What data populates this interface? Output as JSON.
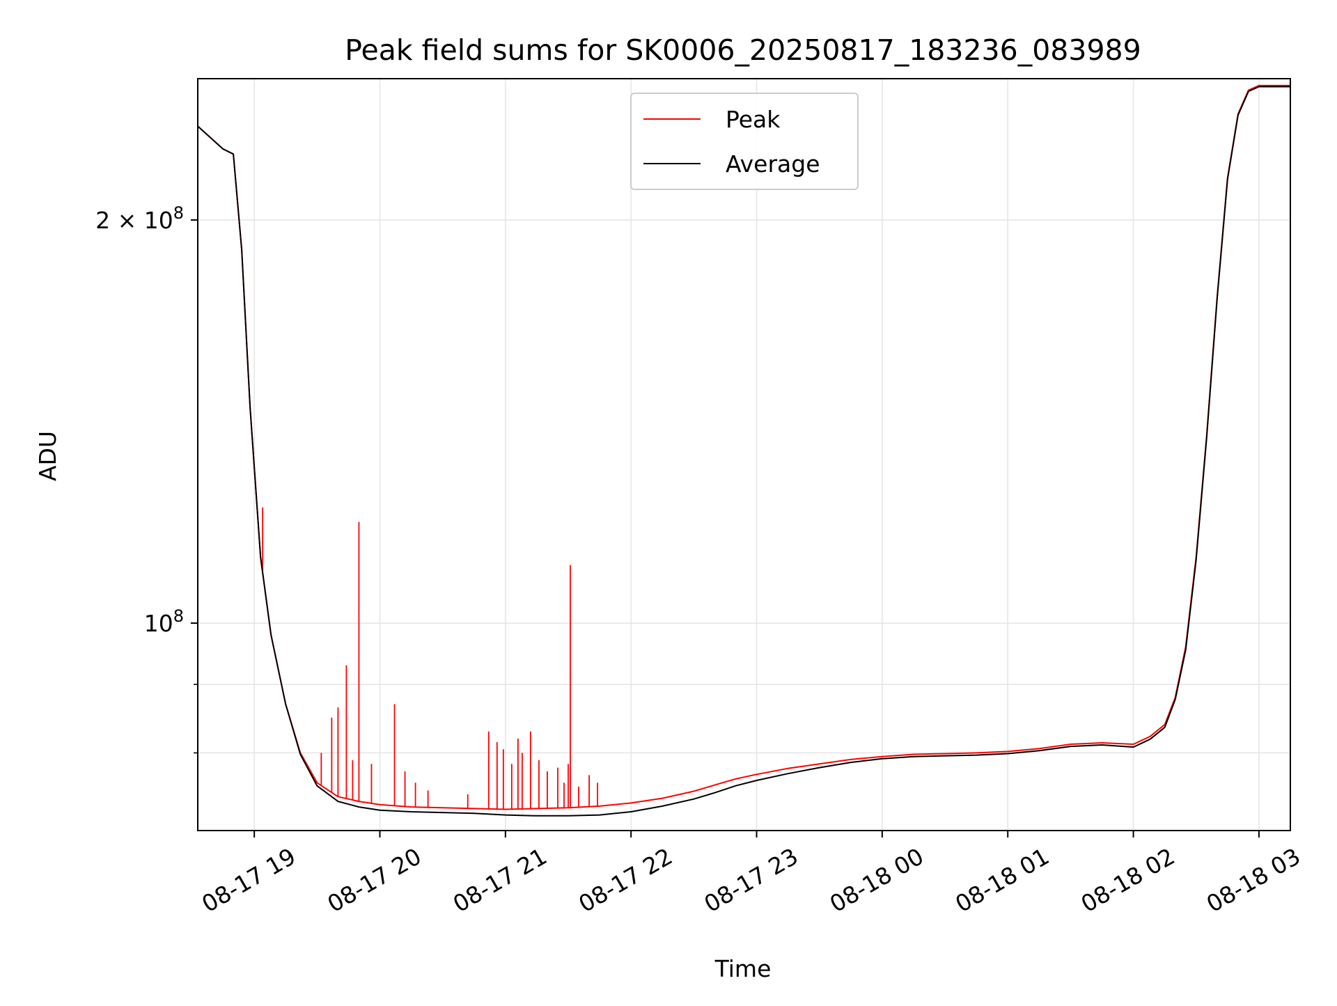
{
  "chart_data": {
    "type": "line",
    "title": "Peak field sums for SK0006_20250817_183236_083989",
    "xlabel": "Time",
    "ylabel": "ADU",
    "x_axis": {
      "type": "time",
      "range": [
        "2025-08-17 18:33",
        "2025-08-18 03:15"
      ],
      "ticks": [
        {
          "value": "2025-08-17 19:00",
          "label": "08-17 19"
        },
        {
          "value": "2025-08-17 20:00",
          "label": "08-17 20"
        },
        {
          "value": "2025-08-17 21:00",
          "label": "08-17 21"
        },
        {
          "value": "2025-08-17 22:00",
          "label": "08-17 22"
        },
        {
          "value": "2025-08-17 23:00",
          "label": "08-17 23"
        },
        {
          "value": "2025-08-18 00:00",
          "label": "08-18 00"
        },
        {
          "value": "2025-08-18 01:00",
          "label": "08-18 01"
        },
        {
          "value": "2025-08-18 02:00",
          "label": "08-18 02"
        },
        {
          "value": "2025-08-18 03:00",
          "label": "08-18 03"
        }
      ]
    },
    "y_axis": {
      "scale": "log",
      "range": [
        70000000,
        255000000
      ],
      "major_ticks": [
        {
          "value": 100000000,
          "label_base": "10",
          "label_exp": "8"
        },
        {
          "value": 200000000,
          "label_base": "2 × 10",
          "label_exp": "8"
        }
      ],
      "minor_ticks": [
        80000000,
        90000000
      ]
    },
    "grid": true,
    "legend": {
      "placement": "top-center",
      "entries": [
        "Peak",
        "Average"
      ]
    },
    "series": [
      {
        "name": "Peak",
        "color": "#ff0000",
        "points": [
          [
            "2025-08-17 18:33",
            235000000
          ],
          [
            "2025-08-17 18:45",
            226000000
          ],
          [
            "2025-08-17 18:50",
            224000000
          ],
          [
            "2025-08-17 18:54",
            190000000
          ],
          [
            "2025-08-17 18:58",
            145000000
          ],
          [
            "2025-08-17 19:03",
            112000000
          ],
          [
            "2025-08-17 19:08",
            98000000
          ],
          [
            "2025-08-17 19:15",
            87000000
          ],
          [
            "2025-08-17 19:22",
            80000000
          ],
          [
            "2025-08-17 19:30",
            76000000
          ],
          [
            "2025-08-17 19:40",
            74200000
          ],
          [
            "2025-08-17 19:50",
            73600000
          ],
          [
            "2025-08-17 20:00",
            73200000
          ],
          [
            "2025-08-17 20:15",
            72900000
          ],
          [
            "2025-08-17 20:30",
            72800000
          ],
          [
            "2025-08-17 20:45",
            72700000
          ],
          [
            "2025-08-17 21:00",
            72600000
          ],
          [
            "2025-08-17 21:15",
            72700000
          ],
          [
            "2025-08-17 21:30",
            72800000
          ],
          [
            "2025-08-17 21:45",
            73000000
          ],
          [
            "2025-08-17 22:00",
            73400000
          ],
          [
            "2025-08-17 22:15",
            74000000
          ],
          [
            "2025-08-17 22:30",
            74900000
          ],
          [
            "2025-08-17 22:40",
            75700000
          ],
          [
            "2025-08-17 22:50",
            76500000
          ],
          [
            "2025-08-17 23:00",
            77100000
          ],
          [
            "2025-08-17 23:15",
            77900000
          ],
          [
            "2025-08-17 23:30",
            78500000
          ],
          [
            "2025-08-17 23:45",
            79100000
          ],
          [
            "2025-08-18 00:00",
            79500000
          ],
          [
            "2025-08-18 00:15",
            79800000
          ],
          [
            "2025-08-18 00:30",
            79900000
          ],
          [
            "2025-08-18 00:45",
            80000000
          ],
          [
            "2025-08-18 01:00",
            80200000
          ],
          [
            "2025-08-18 01:15",
            80600000
          ],
          [
            "2025-08-18 01:30",
            81200000
          ],
          [
            "2025-08-18 01:45",
            81400000
          ],
          [
            "2025-08-18 02:00",
            81200000
          ],
          [
            "2025-08-18 02:08",
            82300000
          ],
          [
            "2025-08-18 02:15",
            84000000
          ],
          [
            "2025-08-18 02:20",
            88000000
          ],
          [
            "2025-08-18 02:25",
            96000000
          ],
          [
            "2025-08-18 02:30",
            112000000
          ],
          [
            "2025-08-18 02:35",
            138000000
          ],
          [
            "2025-08-18 02:40",
            175000000
          ],
          [
            "2025-08-18 02:45",
            215000000
          ],
          [
            "2025-08-18 02:50",
            240000000
          ],
          [
            "2025-08-18 02:55",
            250000000
          ],
          [
            "2025-08-18 03:00",
            252000000
          ],
          [
            "2025-08-18 03:15",
            252000000
          ]
        ],
        "spikes": [
          [
            "2025-08-17 19:04",
            122000000
          ],
          [
            "2025-08-17 19:32",
            80000000
          ],
          [
            "2025-08-17 19:37",
            85000000
          ],
          [
            "2025-08-17 19:40",
            86500000
          ],
          [
            "2025-08-17 19:44",
            93000000
          ],
          [
            "2025-08-17 19:47",
            79000000
          ],
          [
            "2025-08-17 19:50",
            119000000
          ],
          [
            "2025-08-17 19:56",
            78500000
          ],
          [
            "2025-08-17 20:07",
            87000000
          ],
          [
            "2025-08-17 20:12",
            77500000
          ],
          [
            "2025-08-17 20:17",
            76000000
          ],
          [
            "2025-08-17 20:23",
            75000000
          ],
          [
            "2025-08-17 20:42",
            74500000
          ],
          [
            "2025-08-17 20:52",
            83000000
          ],
          [
            "2025-08-17 20:56",
            81500000
          ],
          [
            "2025-08-17 20:59",
            80500000
          ],
          [
            "2025-08-17 21:03",
            78500000
          ],
          [
            "2025-08-17 21:06",
            82000000
          ],
          [
            "2025-08-17 21:08",
            80000000
          ],
          [
            "2025-08-17 21:12",
            83000000
          ],
          [
            "2025-08-17 21:16",
            79000000
          ],
          [
            "2025-08-17 21:20",
            77500000
          ],
          [
            "2025-08-17 21:25",
            78000000
          ],
          [
            "2025-08-17 21:28",
            76000000
          ],
          [
            "2025-08-17 21:30",
            78500000
          ],
          [
            "2025-08-17 21:31",
            110500000
          ],
          [
            "2025-08-17 21:35",
            75500000
          ],
          [
            "2025-08-17 21:40",
            77000000
          ],
          [
            "2025-08-17 21:44",
            76000000
          ]
        ]
      },
      {
        "name": "Average",
        "color": "#000000",
        "points": [
          [
            "2025-08-17 18:33",
            235000000
          ],
          [
            "2025-08-17 18:45",
            226000000
          ],
          [
            "2025-08-17 18:50",
            224000000
          ],
          [
            "2025-08-17 18:54",
            190000000
          ],
          [
            "2025-08-17 18:58",
            145000000
          ],
          [
            "2025-08-17 19:03",
            112000000
          ],
          [
            "2025-08-17 19:08",
            98000000
          ],
          [
            "2025-08-17 19:15",
            87000000
          ],
          [
            "2025-08-17 19:22",
            79800000
          ],
          [
            "2025-08-17 19:30",
            75600000
          ],
          [
            "2025-08-17 19:40",
            73600000
          ],
          [
            "2025-08-17 19:50",
            72900000
          ],
          [
            "2025-08-17 20:00",
            72500000
          ],
          [
            "2025-08-17 20:15",
            72300000
          ],
          [
            "2025-08-17 20:30",
            72200000
          ],
          [
            "2025-08-17 20:45",
            72100000
          ],
          [
            "2025-08-17 21:00",
            71900000
          ],
          [
            "2025-08-17 21:15",
            71800000
          ],
          [
            "2025-08-17 21:30",
            71800000
          ],
          [
            "2025-08-17 21:45",
            71900000
          ],
          [
            "2025-08-17 22:00",
            72300000
          ],
          [
            "2025-08-17 22:15",
            73000000
          ],
          [
            "2025-08-17 22:30",
            73900000
          ],
          [
            "2025-08-17 22:40",
            74700000
          ],
          [
            "2025-08-17 22:50",
            75600000
          ],
          [
            "2025-08-17 23:00",
            76300000
          ],
          [
            "2025-08-17 23:15",
            77200000
          ],
          [
            "2025-08-17 23:30",
            78000000
          ],
          [
            "2025-08-17 23:45",
            78700000
          ],
          [
            "2025-08-18 00:00",
            79200000
          ],
          [
            "2025-08-18 00:15",
            79500000
          ],
          [
            "2025-08-18 00:30",
            79600000
          ],
          [
            "2025-08-18 00:45",
            79700000
          ],
          [
            "2025-08-18 01:00",
            79900000
          ],
          [
            "2025-08-18 01:15",
            80300000
          ],
          [
            "2025-08-18 01:30",
            80900000
          ],
          [
            "2025-08-18 01:45",
            81100000
          ],
          [
            "2025-08-18 02:00",
            80800000
          ],
          [
            "2025-08-18 02:08",
            81900000
          ],
          [
            "2025-08-18 02:15",
            83600000
          ],
          [
            "2025-08-18 02:20",
            87700000
          ],
          [
            "2025-08-18 02:25",
            95500000
          ],
          [
            "2025-08-18 02:30",
            111500000
          ],
          [
            "2025-08-18 02:35",
            137500000
          ],
          [
            "2025-08-18 02:40",
            174500000
          ],
          [
            "2025-08-18 02:45",
            214500000
          ],
          [
            "2025-08-18 02:50",
            239500000
          ],
          [
            "2025-08-18 02:55",
            249500000
          ],
          [
            "2025-08-18 03:00",
            251500000
          ],
          [
            "2025-08-18 03:15",
            251500000
          ]
        ]
      }
    ]
  }
}
